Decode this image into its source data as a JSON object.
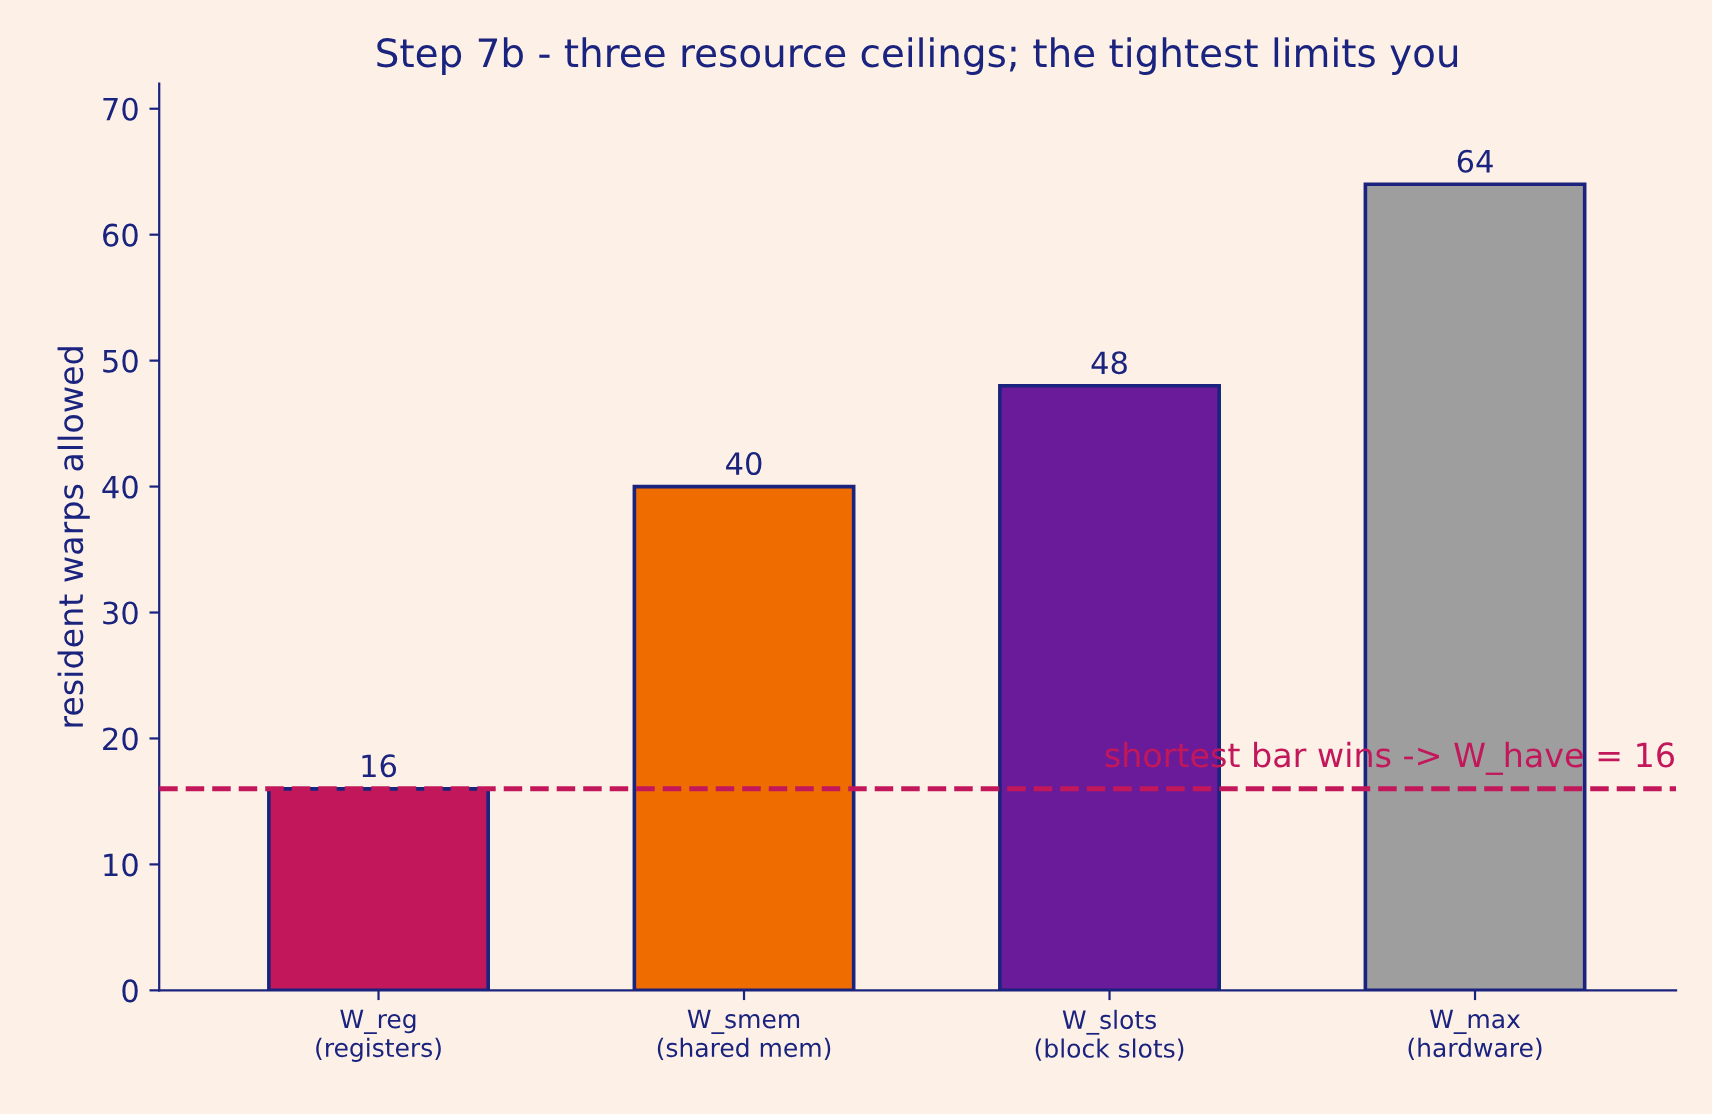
{
  "chart_data": {
    "type": "bar",
    "title": "Step 7b - three resource ceilings; the tightest limits you",
    "ylabel": "resident warps allowed",
    "categories": [
      "W_reg\n(registers)",
      "W_smem\n(shared mem)",
      "W_slots\n(block slots)",
      "W_max\n(hardware)"
    ],
    "values": [
      16,
      40,
      48,
      64
    ],
    "colors": [
      "#c2185b",
      "#ef6c00",
      "#6a1b9a",
      "#9e9e9e"
    ],
    "ylim": [
      0,
      72
    ],
    "yticks": [
      0,
      10,
      20,
      30,
      40,
      50,
      60,
      70
    ],
    "grid": false,
    "data_labels": true,
    "ref_lines": [
      {
        "axis": "y",
        "value": 16,
        "label": "shortest bar wins -> W_have = 16",
        "color": "#c2185b",
        "line_style": "dashed"
      }
    ]
  }
}
